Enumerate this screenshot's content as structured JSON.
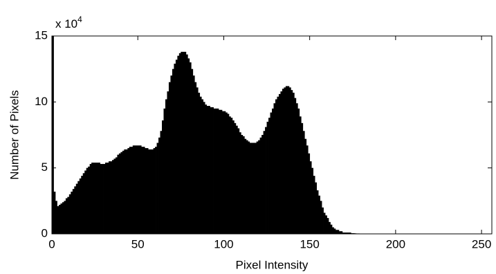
{
  "chart_data": {
    "type": "histogram",
    "x_label": "Pixel Intensity",
    "y_label": "Number of Pixels",
    "y_multiplier": "x 10",
    "y_multiplier_exponent": "4",
    "color": "#000000",
    "xlim": [
      0,
      256
    ],
    "ylim": [
      0,
      15
    ],
    "xticks": [
      0,
      50,
      100,
      150,
      200,
      250
    ],
    "yticks": [
      0,
      5,
      10,
      15
    ],
    "bins": [
      0,
      1,
      2,
      3,
      4,
      5,
      6,
      7,
      8,
      9,
      10,
      11,
      12,
      13,
      14,
      15,
      16,
      17,
      18,
      19,
      20,
      21,
      22,
      23,
      24,
      25,
      26,
      27,
      28,
      29,
      30,
      31,
      32,
      33,
      34,
      35,
      36,
      37,
      38,
      39,
      40,
      41,
      42,
      43,
      44,
      45,
      46,
      47,
      48,
      49,
      50,
      51,
      52,
      53,
      54,
      55,
      56,
      57,
      58,
      59,
      60,
      61,
      62,
      63,
      64,
      65,
      66,
      67,
      68,
      69,
      70,
      71,
      72,
      73,
      74,
      75,
      76,
      77,
      78,
      79,
      80,
      81,
      82,
      83,
      84,
      85,
      86,
      87,
      88,
      89,
      90,
      91,
      92,
      93,
      94,
      95,
      96,
      97,
      98,
      99,
      100,
      101,
      102,
      103,
      104,
      105,
      106,
      107,
      108,
      109,
      110,
      111,
      112,
      113,
      114,
      115,
      116,
      117,
      118,
      119,
      120,
      121,
      122,
      123,
      124,
      125,
      126,
      127,
      128,
      129,
      130,
      131,
      132,
      133,
      134,
      135,
      136,
      137,
      138,
      139,
      140,
      141,
      142,
      143,
      144,
      145,
      146,
      147,
      148,
      149,
      150,
      151,
      152,
      153,
      154,
      155,
      156,
      157,
      158,
      159,
      160,
      161,
      162,
      163,
      164,
      165,
      166,
      167,
      168,
      169,
      170,
      171,
      172,
      173,
      174,
      175,
      176,
      177,
      178,
      179,
      180,
      181,
      182,
      183,
      184,
      185,
      186,
      187,
      188,
      189,
      190,
      191,
      192,
      193,
      194,
      195,
      196,
      197,
      198,
      199,
      200,
      201,
      202,
      203,
      204,
      205,
      206,
      207,
      208,
      209,
      210,
      211,
      212,
      213,
      214,
      215,
      216,
      217,
      218,
      219,
      220,
      221,
      222,
      223,
      224,
      225,
      226,
      227,
      228,
      229,
      230,
      231,
      232,
      233,
      234,
      235,
      236,
      237,
      238,
      239,
      240,
      241,
      242,
      243,
      244,
      245,
      246,
      247,
      248,
      249,
      250,
      251,
      252,
      253,
      254,
      255,
      256
    ],
    "values": [
      15,
      3.2,
      2.5,
      2.1,
      2.2,
      2.3,
      2.4,
      2.5,
      2.7,
      2.8,
      3.0,
      3.2,
      3.4,
      3.6,
      3.8,
      4.0,
      4.2,
      4.4,
      4.6,
      4.8,
      5.0,
      5.1,
      5.3,
      5.4,
      5.4,
      5.4,
      5.4,
      5.4,
      5.3,
      5.3,
      5.3,
      5.4,
      5.4,
      5.5,
      5.5,
      5.6,
      5.7,
      5.8,
      6.0,
      6.1,
      6.2,
      6.3,
      6.4,
      6.4,
      6.5,
      6.6,
      6.6,
      6.7,
      6.7,
      6.7,
      6.7,
      6.7,
      6.6,
      6.6,
      6.5,
      6.5,
      6.4,
      6.4,
      6.4,
      6.5,
      6.6,
      6.9,
      7.3,
      7.8,
      8.6,
      9.5,
      10.2,
      10.8,
      11.5,
      12.0,
      12.5,
      12.9,
      13.2,
      13.5,
      13.7,
      13.8,
      13.8,
      13.8,
      13.6,
      13.3,
      13.0,
      12.5,
      12.0,
      11.5,
      11.1,
      10.7,
      10.4,
      10.2,
      10.0,
      9.8,
      9.7,
      9.7,
      9.6,
      9.6,
      9.5,
      9.5,
      9.5,
      9.4,
      9.4,
      9.3,
      9.3,
      9.2,
      9.1,
      8.9,
      8.8,
      8.6,
      8.4,
      8.2,
      8.0,
      7.7,
      7.5,
      7.4,
      7.2,
      7.1,
      7.0,
      6.9,
      6.9,
      6.9,
      6.9,
      7.0,
      7.1,
      7.3,
      7.5,
      7.8,
      8.1,
      8.5,
      8.8,
      9.2,
      9.5,
      9.9,
      10.2,
      10.4,
      10.6,
      10.8,
      11.0,
      11.1,
      11.2,
      11.2,
      11.1,
      10.9,
      10.7,
      10.3,
      9.9,
      9.5,
      8.9,
      8.4,
      7.8,
      7.2,
      6.7,
      6.1,
      5.5,
      5.0,
      4.4,
      3.9,
      3.3,
      2.9,
      2.5,
      2.0,
      1.6,
      1.4,
      1.2,
      0.9,
      0.7,
      0.5,
      0.4,
      0.3,
      0.3,
      0.2,
      0.2,
      0.1,
      0.1,
      0.1,
      0.1,
      0.1,
      0.05,
      0.05,
      0.04,
      0.03,
      0.03,
      0.02,
      0.02,
      0.01,
      0.01,
      0.01,
      0.01,
      0.01,
      0.01,
      0.01,
      0.01,
      0.01,
      0.01,
      0,
      0,
      0,
      0,
      0,
      0,
      0,
      0,
      0,
      0,
      0,
      0,
      0,
      0,
      0,
      0,
      0,
      0,
      0,
      0,
      0,
      0,
      0,
      0,
      0,
      0,
      0,
      0,
      0,
      0,
      0,
      0,
      0,
      0,
      0,
      0,
      0,
      0,
      0,
      0,
      0,
      0,
      0,
      0,
      0,
      0,
      0,
      0,
      0,
      0,
      0,
      0,
      0,
      0,
      0,
      0,
      0,
      0,
      0,
      0,
      0,
      0,
      0,
      0,
      0
    ]
  }
}
